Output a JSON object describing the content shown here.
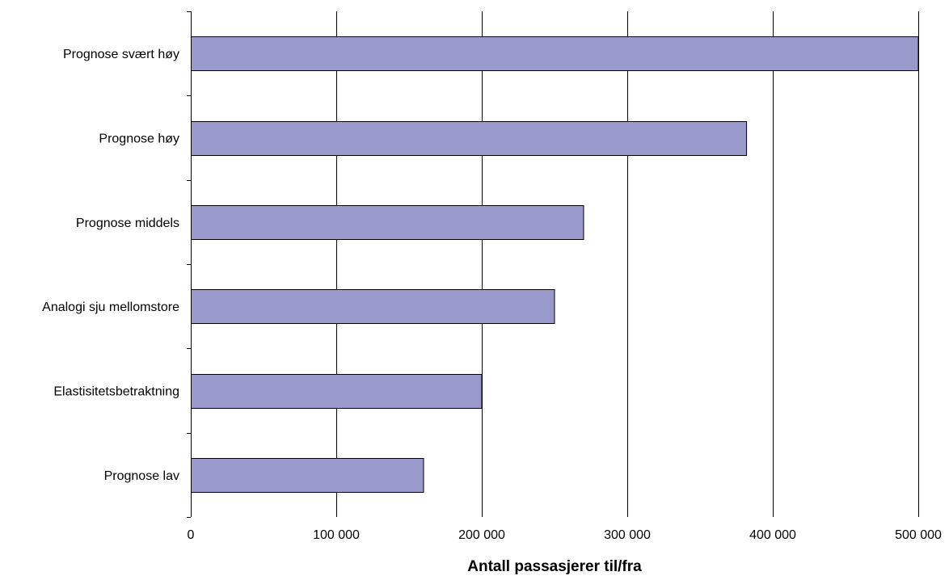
{
  "chart_data": {
    "type": "bar",
    "orientation": "horizontal",
    "categories": [
      "Prognose svært høy",
      "Prognose høy",
      "Prognose middels",
      "Analogi sju mellomstore",
      "Elastisitetsbetraktning",
      "Prognose lav"
    ],
    "values": [
      500000,
      382000,
      270000,
      250000,
      200000,
      160000
    ],
    "xlabel": "Antall passasjerer til/fra",
    "ylabel": "",
    "title": "",
    "xlim": [
      0,
      500000
    ],
    "xticks": [
      0,
      100000,
      200000,
      300000,
      400000,
      500000
    ],
    "xtick_labels": [
      "0",
      "100 000",
      "200 000",
      "300 000",
      "400 000",
      "500 000"
    ],
    "grid": "vertical",
    "legend": "none",
    "colors": {
      "bar_fill": "#9999cc",
      "bar_stroke": "#000000",
      "grid": "#000000",
      "axis": "#000000",
      "background": "#ffffff"
    }
  }
}
